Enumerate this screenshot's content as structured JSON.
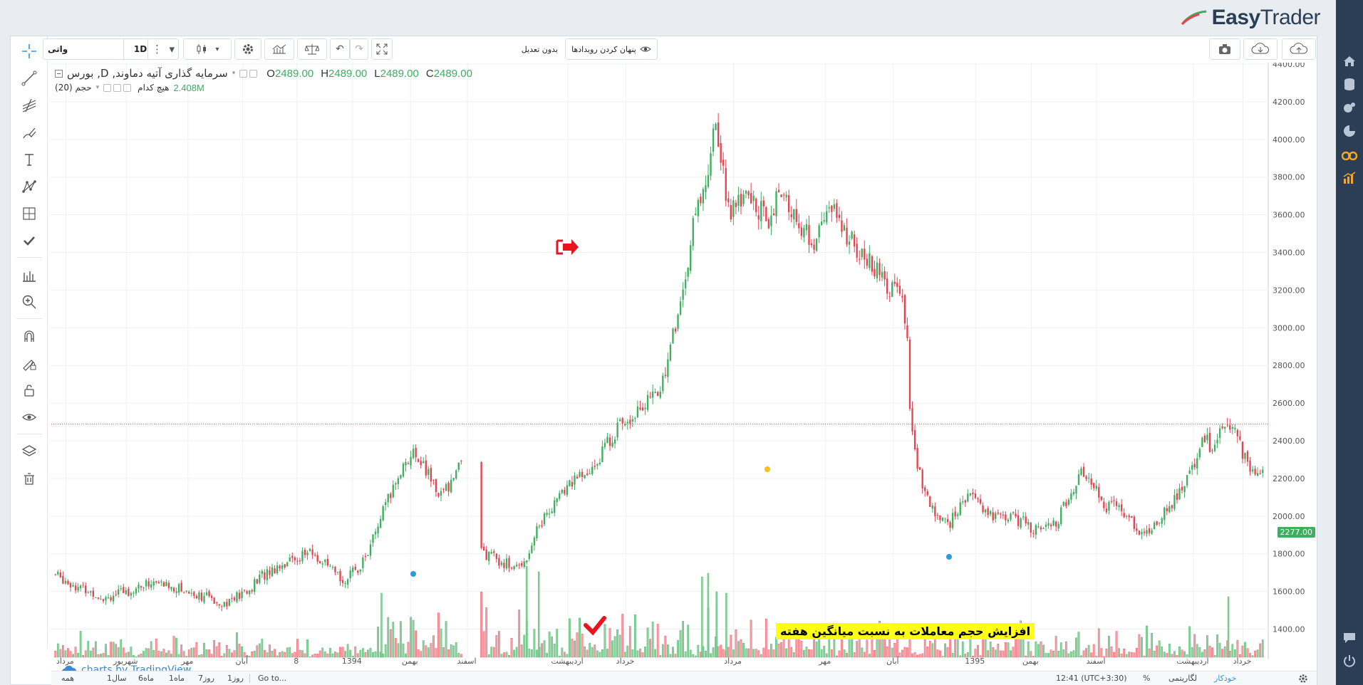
{
  "brand": {
    "name_bold": "Easy",
    "name_light": "Trader"
  },
  "toolbar": {
    "symbol_value": "واتی",
    "interval": "1D",
    "adjustment": "بدون تعدیل",
    "hide_events": "پنهان کردن رویدادها"
  },
  "legend": {
    "title": "سرمایه گذاری آتیه دماوند, D, بورس",
    "open_label": "O",
    "open": "2489.00",
    "high_label": "H",
    "high": "2489.00",
    "low_label": "L",
    "low": "2489.00",
    "close_label": "C",
    "close": "2489.00",
    "volume_label": "حجم (20)",
    "volume_ma": "هیچ کدام",
    "volume_value": "2.408M"
  },
  "annotation": {
    "callout": "افزایش حجم معاملات به نسبت میانگین هفته"
  },
  "watermark": {
    "text": "charts by TradingView"
  },
  "last_price_tag": "2277.00",
  "chart_data": {
    "type": "candlestick",
    "title": "سرمایه گذاری آتیه دماوند, D, بورس",
    "ylim": [
      1300,
      4400
    ],
    "y_ticks": [
      "4400.00",
      "4200.00",
      "4000.00",
      "3800.00",
      "3600.00",
      "3400.00",
      "3200.00",
      "3000.00",
      "2800.00",
      "2600.00",
      "2400.00",
      "2200.00",
      "2000.00",
      "1800.00",
      "1600.00",
      "1400.00"
    ],
    "x_labels": [
      "مرداد",
      "شهریور",
      "مهر",
      "آبان",
      "8",
      "1394",
      "بهمن",
      "اسفند",
      "اردیبهشت",
      "خرداد",
      "مرداد",
      "مهر",
      "آبان",
      "1395",
      "بهمن",
      "اسفند",
      "اردیبهشت",
      "خرداد"
    ],
    "x_label_positions": [
      0.012,
      0.062,
      0.113,
      0.158,
      0.203,
      0.249,
      0.297,
      0.344,
      0.427,
      0.475,
      0.564,
      0.64,
      0.696,
      0.764,
      0.81,
      0.864,
      0.944,
      0.985
    ],
    "close_path": [
      [
        0,
        1690
      ],
      [
        0.02,
        1620
      ],
      [
        0.04,
        1570
      ],
      [
        0.06,
        1600
      ],
      [
        0.08,
        1650
      ],
      [
        0.1,
        1620
      ],
      [
        0.12,
        1580
      ],
      [
        0.14,
        1540
      ],
      [
        0.16,
        1600
      ],
      [
        0.17,
        1680
      ],
      [
        0.185,
        1740
      ],
      [
        0.2,
        1780
      ],
      [
        0.21,
        1810
      ],
      [
        0.22,
        1760
      ],
      [
        0.23,
        1700
      ],
      [
        0.24,
        1660
      ],
      [
        0.25,
        1720
      ],
      [
        0.26,
        1820
      ],
      [
        0.27,
        2000
      ],
      [
        0.28,
        2150
      ],
      [
        0.29,
        2300
      ],
      [
        0.3,
        2330
      ],
      [
        0.31,
        2200
      ],
      [
        0.32,
        2110
      ],
      [
        0.33,
        2210
      ],
      [
        0.335,
        2290
      ],
      [
        0.355,
        1800
      ],
      [
        0.37,
        1760
      ],
      [
        0.38,
        1720
      ],
      [
        0.39,
        1780
      ],
      [
        0.4,
        1950
      ],
      [
        0.41,
        2040
      ],
      [
        0.42,
        2120
      ],
      [
        0.43,
        2210
      ],
      [
        0.44,
        2200
      ],
      [
        0.45,
        2310
      ],
      [
        0.46,
        2420
      ],
      [
        0.47,
        2500
      ],
      [
        0.48,
        2560
      ],
      [
        0.49,
        2600
      ],
      [
        0.5,
        2660
      ],
      [
        0.505,
        2780
      ],
      [
        0.51,
        2920
      ],
      [
        0.515,
        3050
      ],
      [
        0.52,
        3200
      ],
      [
        0.525,
        3400
      ],
      [
        0.53,
        3600
      ],
      [
        0.54,
        3800
      ],
      [
        0.545,
        4100
      ],
      [
        0.55,
        3950
      ],
      [
        0.555,
        3750
      ],
      [
        0.56,
        3600
      ],
      [
        0.57,
        3700
      ],
      [
        0.58,
        3650
      ],
      [
        0.59,
        3580
      ],
      [
        0.6,
        3700
      ],
      [
        0.61,
        3620
      ],
      [
        0.62,
        3500
      ],
      [
        0.63,
        3450
      ],
      [
        0.64,
        3650
      ],
      [
        0.65,
        3550
      ],
      [
        0.66,
        3450
      ],
      [
        0.67,
        3370
      ],
      [
        0.68,
        3300
      ],
      [
        0.69,
        3220
      ],
      [
        0.7,
        3160
      ],
      [
        0.705,
        3020
      ],
      [
        0.708,
        2480
      ],
      [
        0.72,
        2100
      ],
      [
        0.73,
        2000
      ],
      [
        0.74,
        1960
      ],
      [
        0.75,
        2050
      ],
      [
        0.76,
        2150
      ],
      [
        0.77,
        2020
      ],
      [
        0.78,
        1990
      ],
      [
        0.79,
        2000
      ],
      [
        0.8,
        1970
      ],
      [
        0.81,
        1940
      ],
      [
        0.82,
        1920
      ],
      [
        0.83,
        1980
      ],
      [
        0.84,
        2100
      ],
      [
        0.85,
        2250
      ],
      [
        0.86,
        2180
      ],
      [
        0.87,
        2050
      ],
      [
        0.88,
        2060
      ],
      [
        0.89,
        1990
      ],
      [
        0.9,
        1900
      ],
      [
        0.91,
        1960
      ],
      [
        0.92,
        2030
      ],
      [
        0.93,
        2120
      ],
      [
        0.94,
        2230
      ],
      [
        0.95,
        2420
      ],
      [
        0.96,
        2350
      ],
      [
        0.97,
        2520
      ],
      [
        0.98,
        2400
      ],
      [
        0.99,
        2230
      ],
      [
        1.0,
        2270
      ]
    ],
    "volume_path": [
      [
        0.265,
        0.3
      ],
      [
        0.27,
        0.9
      ],
      [
        0.355,
        1.0
      ],
      [
        0.38,
        1.0
      ],
      [
        0.39,
        0.7
      ],
      [
        0.495,
        0.7
      ],
      [
        0.53,
        0.7
      ],
      [
        0.535,
        1.0
      ],
      [
        0.54,
        1.0
      ],
      [
        0.55,
        0.7
      ],
      [
        0.57,
        0.6
      ],
      [
        0.64,
        0.4
      ],
      [
        0.67,
        0.4
      ],
      [
        0.7,
        0.7
      ],
      [
        0.75,
        0.4
      ],
      [
        0.88,
        0.3
      ],
      [
        0.95,
        0.45
      ],
      [
        0.97,
        0.75
      ]
    ],
    "reference_line": 2489
  },
  "bottom_bar": {
    "goto": "Go to...",
    "ranges": [
      "1روز",
      "7روز",
      "1ماه",
      "6ماه",
      "1سال",
      "همه"
    ],
    "clock": "12:41 (UTC+3:30)",
    "percent": "%",
    "log": "لگاریتمی",
    "auto": "خودکار"
  },
  "colors": {
    "up": "#3eae5f",
    "down": "#e8414f",
    "nav_bg": "#2b3e55",
    "accent": "#f5a623"
  }
}
